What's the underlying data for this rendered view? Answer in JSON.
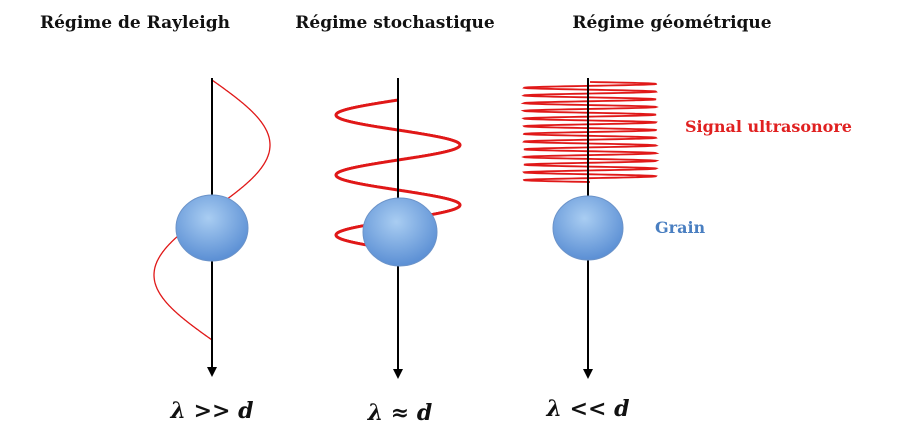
{
  "titles": [
    "Régime de Rayleigh",
    "Régime stochastique",
    "Régime géométrique"
  ],
  "labels": {
    "signal": "Signal ultrasonore",
    "grain": "Grain"
  },
  "relations": [
    "λ >> d",
    "λ ≈ d",
    "λ << d"
  ]
}
